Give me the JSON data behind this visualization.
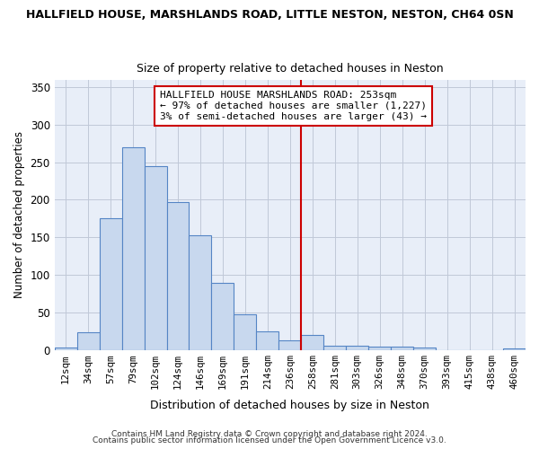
{
  "title": "HALLFIELD HOUSE, MARSHLANDS ROAD, LITTLE NESTON, NESTON, CH64 0SN",
  "subtitle": "Size of property relative to detached houses in Neston",
  "xlabel": "Distribution of detached houses by size in Neston",
  "ylabel": "Number of detached properties",
  "footer1": "Contains HM Land Registry data © Crown copyright and database right 2024.",
  "footer2": "Contains public sector information licensed under the Open Government Licence v3.0.",
  "bar_categories": [
    "12sqm",
    "34sqm",
    "57sqm",
    "79sqm",
    "102sqm",
    "124sqm",
    "146sqm",
    "169sqm",
    "191sqm",
    "214sqm",
    "236sqm",
    "258sqm",
    "281sqm",
    "303sqm",
    "326sqm",
    "348sqm",
    "370sqm",
    "393sqm",
    "415sqm",
    "438sqm",
    "460sqm"
  ],
  "bar_values": [
    3,
    23,
    175,
    270,
    245,
    197,
    153,
    89,
    47,
    25,
    13,
    20,
    6,
    6,
    4,
    4,
    3,
    0,
    0,
    0,
    2
  ],
  "bar_color": "#c8d8ee",
  "bar_edge_color": "#5585c5",
  "vline_index": 11,
  "vline_color": "#cc0000",
  "annotation_text": "HALLFIELD HOUSE MARSHLANDS ROAD: 253sqm\n← 97% of detached houses are smaller (1,227)\n3% of semi-detached houses are larger (43) →",
  "annotation_box_color": "#ffffff",
  "annotation_box_edge": "#cc0000",
  "background_color": "#ffffff",
  "plot_bg_color": "#e8eef8",
  "grid_color": "#c0c8d8",
  "ylim": [
    0,
    360
  ],
  "yticks": [
    0,
    50,
    100,
    150,
    200,
    250,
    300,
    350
  ]
}
